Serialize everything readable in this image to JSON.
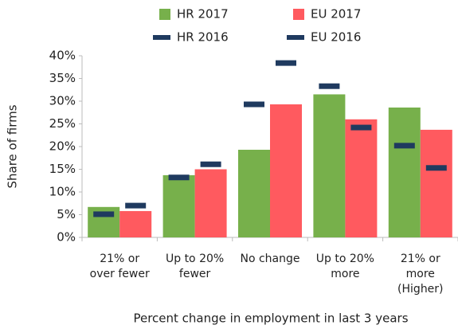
{
  "chart_data": {
    "type": "bar",
    "categories": [
      "21% or\nover fewer",
      "Up to 20%\nfewer",
      "No change",
      "Up to 20%\nmore",
      "21% or\nmore\n(Higher)"
    ],
    "series": [
      {
        "name": "HR 2017",
        "color": "#77b04b",
        "mark": "bar",
        "values": [
          6.7,
          13.7,
          19.3,
          31.5,
          28.6
        ]
      },
      {
        "name": "EU 2017",
        "color": "#ff5a5f",
        "mark": "bar",
        "values": [
          5.8,
          15.0,
          29.3,
          26.0,
          23.7
        ]
      },
      {
        "name": "HR 2016",
        "color": "#1f3a5f",
        "mark": "dash",
        "values": [
          5.1,
          13.2,
          29.3,
          33.3,
          20.2
        ]
      },
      {
        "name": "EU 2016",
        "color": "#1f3a5f",
        "mark": "dash",
        "values": [
          7.0,
          16.1,
          38.4,
          24.2,
          15.3
        ]
      }
    ],
    "ylabel": "Share of firms",
    "xlabel": "Percent change in employment in last 3 years",
    "ylim": [
      0,
      40
    ],
    "yticks": [
      {
        "value": 0,
        "label": "0%"
      },
      {
        "value": 5,
        "label": "5%"
      },
      {
        "value": 10,
        "label": "10%"
      },
      {
        "value": 15,
        "label": "15%"
      },
      {
        "value": 20,
        "label": "20%"
      },
      {
        "value": 25,
        "label": "25%"
      },
      {
        "value": 30,
        "label": "30%"
      },
      {
        "value": 35,
        "label": "35%"
      },
      {
        "value": 40,
        "label": "40%"
      }
    ],
    "grid": false
  }
}
